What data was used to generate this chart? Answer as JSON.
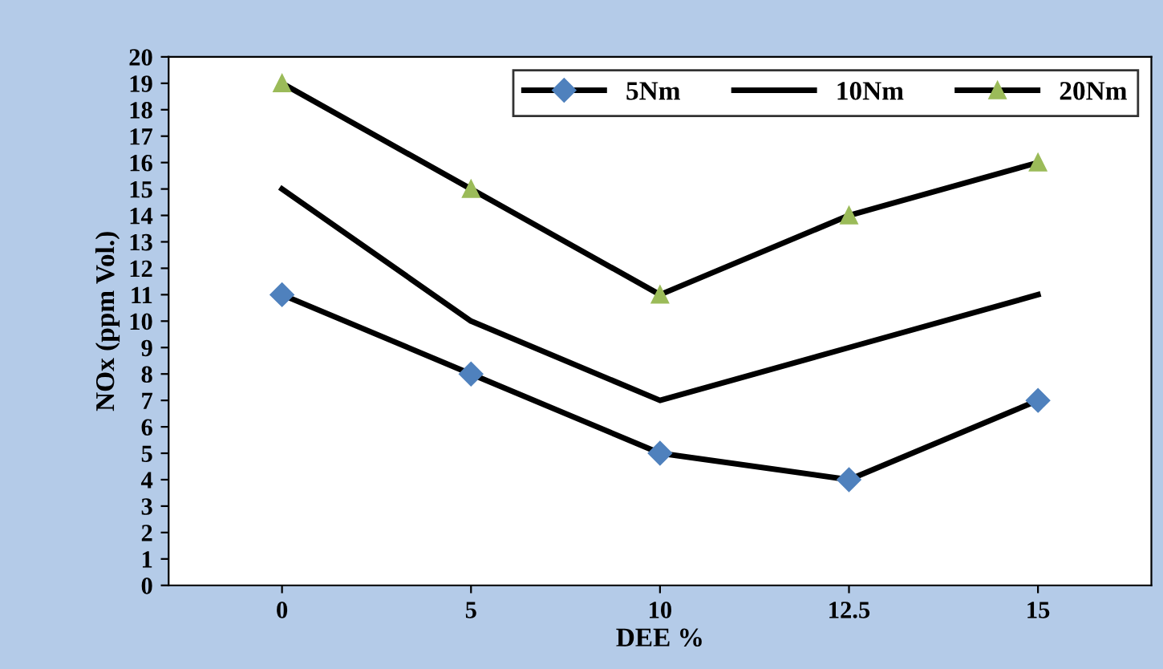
{
  "chart_data": {
    "type": "line",
    "xlabel": "DEE %",
    "ylabel": "NOx (ppm Vol.)",
    "categories": [
      "0",
      "5",
      "10",
      "12.5",
      "15"
    ],
    "series": [
      {
        "name": "5Nm",
        "color": "#4f81bd",
        "marker": "diamond",
        "values": [
          11,
          8,
          5,
          4,
          7
        ]
      },
      {
        "name": "10Nm",
        "color": "#000000",
        "marker": "none",
        "values": [
          15,
          10,
          7,
          9,
          11
        ]
      },
      {
        "name": "20Nm",
        "color": "#9bbb59",
        "marker": "triangle",
        "values": [
          19,
          15,
          11,
          14,
          16
        ]
      }
    ],
    "ylim": [
      0,
      20
    ],
    "yticks": [
      0,
      1,
      2,
      3,
      4,
      5,
      6,
      7,
      8,
      9,
      10,
      11,
      12,
      13,
      14,
      15,
      16,
      17,
      18,
      19,
      20
    ],
    "legend": "top right",
    "grid": false
  }
}
